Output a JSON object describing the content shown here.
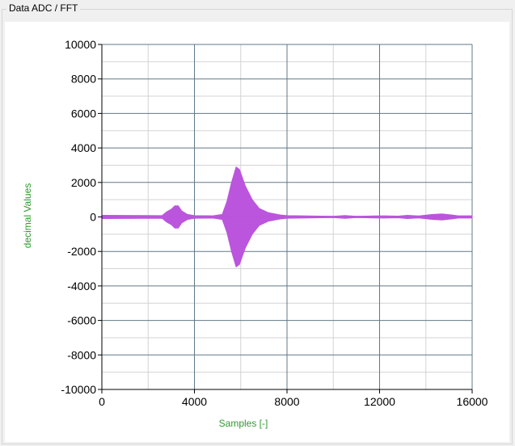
{
  "groupbox": {
    "title": "Data ADC / FFT"
  },
  "chart_data": {
    "type": "line",
    "xlabel": "Samples [-]",
    "ylabel": "decimal Values",
    "xlim": [
      0,
      16000
    ],
    "ylim": [
      -10000,
      10000
    ],
    "x_ticks": [
      "0",
      "4000",
      "8000",
      "12000",
      "16000"
    ],
    "y_ticks": [
      "10000",
      "8000",
      "6000",
      "4000",
      "2000",
      "0",
      "-2000",
      "-4000",
      "-6000",
      "-8000",
      "-10000"
    ],
    "grid": true,
    "series": [
      {
        "color": "#bb55dd",
        "envelope": [
          [
            0,
            100
          ],
          [
            2600,
            80
          ],
          [
            2800,
            300
          ],
          [
            3000,
            450
          ],
          [
            3150,
            650
          ],
          [
            3300,
            650
          ],
          [
            3450,
            350
          ],
          [
            3700,
            150
          ],
          [
            4000,
            80
          ],
          [
            4800,
            70
          ],
          [
            5200,
            150
          ],
          [
            5400,
            900
          ],
          [
            5600,
            2000
          ],
          [
            5800,
            2900
          ],
          [
            5950,
            2750
          ],
          [
            6200,
            1800
          ],
          [
            6500,
            1000
          ],
          [
            6800,
            500
          ],
          [
            7200,
            250
          ],
          [
            7700,
            120
          ],
          [
            8000,
            80
          ],
          [
            10000,
            40
          ],
          [
            10500,
            90
          ],
          [
            11000,
            40
          ],
          [
            11800,
            60
          ],
          [
            12200,
            70
          ],
          [
            12800,
            50
          ],
          [
            13200,
            100
          ],
          [
            13700,
            60
          ],
          [
            14300,
            150
          ],
          [
            14700,
            180
          ],
          [
            15100,
            120
          ],
          [
            15400,
            70
          ],
          [
            16000,
            70
          ]
        ]
      }
    ]
  },
  "colors": {
    "axis_label": "#2e9a2e",
    "major_grid": "#607888",
    "minor_grid": "#d3d3d3",
    "signal": "#bb55dd"
  }
}
